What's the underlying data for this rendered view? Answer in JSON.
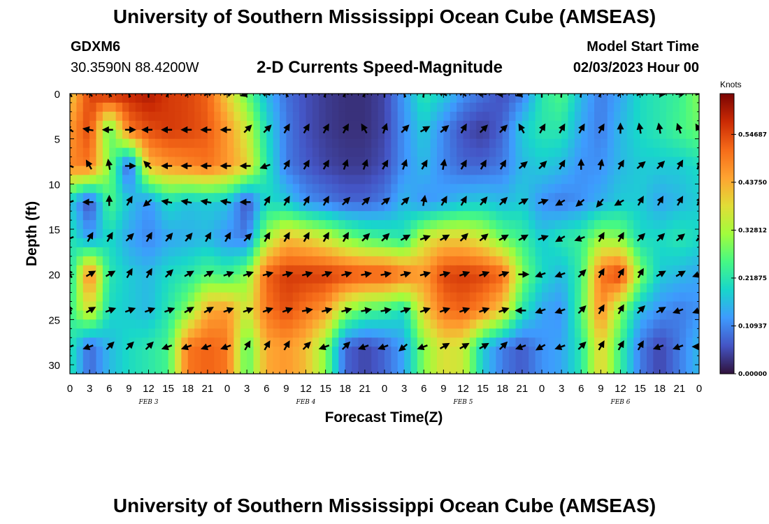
{
  "header": {
    "title": "University of Southern Mississippi Ocean Cube (AMSEAS)",
    "station": "GDXM6",
    "coords": "30.3590N  88.4200W",
    "subtitle": "2-D Currents Speed-Magnitude",
    "model_start_label": "Model Start Time",
    "model_start_value": "02/03/2023 Hour 00"
  },
  "footer": {
    "title": "University of Southern Mississippi Ocean Cube (AMSEAS)"
  },
  "chart_data": {
    "type": "heatmap",
    "title": "2-D Currents Speed-Magnitude",
    "xlabel": "Forecast Time(Z)",
    "ylabel": "Depth (ft)",
    "x_ticks": [
      "0",
      "3",
      "6",
      "9",
      "12",
      "15",
      "18",
      "21",
      "0",
      "3",
      "6",
      "9",
      "12",
      "15",
      "18",
      "21",
      "0",
      "3",
      "6",
      "9",
      "12",
      "15",
      "18",
      "21",
      "0",
      "3",
      "6",
      "9",
      "12",
      "15",
      "18",
      "21",
      "0"
    ],
    "date_labels": [
      "FEB 3",
      "FEB 4",
      "FEB 5",
      "FEB 6"
    ],
    "y_ticks": [
      "0",
      "5",
      "10",
      "15",
      "20",
      "25",
      "30"
    ],
    "ylim": [
      0,
      31
    ],
    "xlim_hours": [
      0,
      96
    ],
    "colorbar": {
      "label": "Knots",
      "ticks": [
        "0.54687",
        "0.43750",
        "0.32812",
        "0.21875",
        "0.10937",
        "0.00000"
      ],
      "range": [
        0,
        0.64
      ],
      "stops": [
        "#30123b",
        "#4454c4",
        "#3e9bfe",
        "#18d6cb",
        "#46f884",
        "#a2fc3c",
        "#e1dd37",
        "#fea331",
        "#f66b19",
        "#ca2a04",
        "#7a0403"
      ]
    },
    "depth_levels_ft": [
      0,
      4,
      8,
      12,
      16,
      20,
      24,
      28
    ],
    "time_hours": [
      0,
      3,
      6,
      9,
      12,
      15,
      18,
      21,
      24,
      27,
      30,
      33,
      36,
      39,
      42,
      45,
      48,
      51,
      54,
      57,
      60,
      63,
      66,
      69,
      72,
      75,
      78,
      81,
      84,
      87,
      90,
      93,
      96
    ],
    "speed_knots": [
      [
        0.4,
        0.55,
        0.58,
        0.58,
        0.6,
        0.56,
        0.55,
        0.52,
        0.4,
        0.28,
        0.16,
        0.09,
        0.06,
        0.04,
        0.03,
        0.03,
        0.05,
        0.13,
        0.22,
        0.18,
        0.12,
        0.09,
        0.06,
        0.1,
        0.22,
        0.26,
        0.16,
        0.1,
        0.14,
        0.2,
        0.22,
        0.24,
        0.3
      ],
      [
        0.46,
        0.55,
        0.26,
        0.5,
        0.54,
        0.56,
        0.55,
        0.53,
        0.46,
        0.36,
        0.2,
        0.1,
        0.06,
        0.04,
        0.03,
        0.03,
        0.05,
        0.12,
        0.18,
        0.11,
        0.06,
        0.04,
        0.08,
        0.18,
        0.22,
        0.22,
        0.14,
        0.1,
        0.16,
        0.2,
        0.22,
        0.25,
        0.28
      ],
      [
        0.48,
        0.5,
        0.3,
        0.06,
        0.42,
        0.46,
        0.48,
        0.5,
        0.46,
        0.4,
        0.22,
        0.1,
        0.07,
        0.05,
        0.04,
        0.04,
        0.06,
        0.12,
        0.16,
        0.11,
        0.08,
        0.08,
        0.1,
        0.16,
        0.18,
        0.16,
        0.12,
        0.12,
        0.16,
        0.18,
        0.18,
        0.18,
        0.2
      ],
      [
        0.18,
        0.05,
        0.26,
        0.17,
        0.12,
        0.2,
        0.17,
        0.18,
        0.17,
        0.06,
        0.2,
        0.18,
        0.12,
        0.1,
        0.08,
        0.08,
        0.1,
        0.16,
        0.12,
        0.14,
        0.17,
        0.18,
        0.16,
        0.18,
        0.12,
        0.1,
        0.12,
        0.15,
        0.18,
        0.18,
        0.14,
        0.16,
        0.18
      ],
      [
        0.22,
        0.13,
        0.2,
        0.14,
        0.11,
        0.14,
        0.15,
        0.16,
        0.12,
        0.1,
        0.32,
        0.42,
        0.4,
        0.36,
        0.3,
        0.26,
        0.24,
        0.22,
        0.36,
        0.4,
        0.4,
        0.36,
        0.28,
        0.24,
        0.18,
        0.22,
        0.24,
        0.32,
        0.3,
        0.2,
        0.2,
        0.22,
        0.2
      ],
      [
        0.2,
        0.5,
        0.22,
        0.18,
        0.16,
        0.2,
        0.22,
        0.26,
        0.24,
        0.3,
        0.52,
        0.56,
        0.56,
        0.56,
        0.55,
        0.54,
        0.54,
        0.5,
        0.46,
        0.55,
        0.56,
        0.55,
        0.52,
        0.3,
        0.2,
        0.16,
        0.24,
        0.5,
        0.56,
        0.3,
        0.18,
        0.16,
        0.14
      ],
      [
        0.24,
        0.38,
        0.2,
        0.18,
        0.16,
        0.22,
        0.3,
        0.44,
        0.46,
        0.36,
        0.5,
        0.54,
        0.5,
        0.46,
        0.32,
        0.26,
        0.24,
        0.2,
        0.4,
        0.5,
        0.52,
        0.48,
        0.4,
        0.22,
        0.14,
        0.12,
        0.26,
        0.48,
        0.3,
        0.16,
        0.12,
        0.1,
        0.12
      ],
      [
        0.22,
        0.08,
        0.16,
        0.2,
        0.22,
        0.25,
        0.5,
        0.52,
        0.5,
        0.26,
        0.44,
        0.46,
        0.42,
        0.3,
        0.08,
        0.05,
        0.08,
        0.14,
        0.3,
        0.38,
        0.36,
        0.18,
        0.1,
        0.07,
        0.12,
        0.14,
        0.22,
        0.4,
        0.24,
        0.1,
        0.05,
        0.1,
        0.16
      ]
    ],
    "vector_angles_deg": [
      [
        120,
        135,
        125,
        110,
        90,
        60,
        45,
        30,
        15,
        200,
        160,
        120,
        90,
        70,
        60,
        60,
        90,
        110,
        80,
        150,
        140,
        170,
        180,
        200,
        90,
        85,
        80,
        60,
        45,
        30,
        0,
        10,
        20
      ],
      [
        150,
        170,
        180,
        0,
        180,
        180,
        180,
        180,
        180,
        45,
        45,
        60,
        60,
        60,
        60,
        120,
        70,
        45,
        30,
        40,
        60,
        45,
        45,
        120,
        60,
        60,
        60,
        60,
        90,
        100,
        100,
        110,
        120
      ],
      [
        160,
        120,
        100,
        0,
        135,
        180,
        180,
        180,
        180,
        180,
        200,
        60,
        60,
        60,
        70,
        70,
        60,
        70,
        60,
        80,
        60,
        60,
        60,
        40,
        45,
        60,
        90,
        80,
        60,
        40,
        45,
        60,
        60
      ],
      [
        200,
        180,
        90,
        60,
        220,
        170,
        170,
        170,
        170,
        180,
        60,
        60,
        60,
        60,
        45,
        45,
        40,
        45,
        80,
        60,
        60,
        50,
        45,
        30,
        20,
        210,
        220,
        230,
        210,
        60,
        60,
        60,
        60
      ],
      [
        200,
        60,
        60,
        45,
        60,
        50,
        50,
        60,
        60,
        45,
        60,
        60,
        60,
        60,
        60,
        45,
        45,
        30,
        20,
        30,
        45,
        40,
        30,
        30,
        20,
        210,
        200,
        60,
        60,
        45,
        45,
        40,
        45
      ],
      [
        120,
        30,
        30,
        60,
        60,
        45,
        30,
        30,
        20,
        20,
        15,
        15,
        15,
        20,
        15,
        10,
        10,
        15,
        15,
        15,
        20,
        20,
        20,
        0,
        200,
        200,
        45,
        60,
        60,
        60,
        30,
        30,
        200
      ],
      [
        110,
        30,
        20,
        20,
        20,
        20,
        30,
        30,
        20,
        20,
        20,
        20,
        10,
        15,
        15,
        10,
        10,
        20,
        20,
        20,
        20,
        20,
        20,
        180,
        200,
        200,
        45,
        60,
        60,
        45,
        30,
        200,
        200
      ],
      [
        200,
        200,
        45,
        45,
        45,
        200,
        200,
        200,
        200,
        60,
        60,
        60,
        45,
        200,
        45,
        200,
        200,
        220,
        200,
        30,
        30,
        30,
        45,
        200,
        210,
        200,
        45,
        60,
        60,
        60,
        200,
        200,
        180
      ]
    ]
  }
}
